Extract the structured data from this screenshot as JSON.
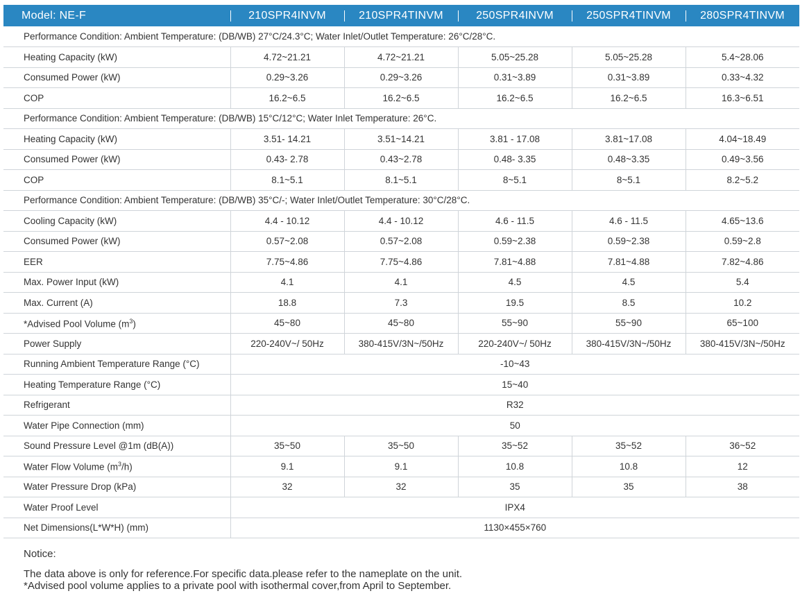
{
  "header": {
    "model_label": "Model: NE-F",
    "models": [
      "210SPR4INVM",
      "210SPR4TINVM",
      "250SPR4INVM",
      "250SPR4TINVM",
      "280SPR4TINVM"
    ]
  },
  "conditions": {
    "c1": "Performance Condition: Ambient Temperature:  (DB/WB) 27°C/24.3°C; Water Inlet/Outlet Temperature: 26°C/28°C.",
    "c2": "Performance Condition: Ambient Temperature:  (DB/WB) 15°C/12°C; Water Inlet Temperature: 26°C.",
    "c3": "Performance Condition: Ambient Temperature:  (DB/WB) 35°C/-; Water Inlet/Outlet Temperature: 30°C/28°C."
  },
  "rows": {
    "r1": {
      "label": "Heating Capacity (kW)",
      "v": [
        "4.72~21.21",
        "4.72~21.21",
        "5.05~25.28",
        "5.05~25.28",
        "5.4~28.06"
      ]
    },
    "r2": {
      "label": "Consumed Power (kW)",
      "v": [
        "0.29~3.26",
        "0.29~3.26",
        "0.31~3.89",
        "0.31~3.89",
        "0.33~4.32"
      ]
    },
    "r3": {
      "label": "COP",
      "v": [
        "16.2~6.5",
        "16.2~6.5",
        "16.2~6.5",
        "16.2~6.5",
        "16.3~6.51"
      ]
    },
    "r4": {
      "label": "Heating Capacity (kW)",
      "v": [
        "3.51- 14.21",
        "3.51~14.21",
        "3.81 - 17.08",
        "3.81~17.08",
        "4.04~18.49"
      ]
    },
    "r5": {
      "label": "Consumed Power (kW)",
      "v": [
        "0.43- 2.78",
        "0.43~2.78",
        "0.48- 3.35",
        "0.48~3.35",
        "0.49~3.56"
      ]
    },
    "r6": {
      "label": "COP",
      "v": [
        "8.1~5.1",
        "8.1~5.1",
        "8~5.1",
        "8~5.1",
        "8.2~5.2"
      ]
    },
    "r7": {
      "label": "Cooling Capacity (kW)",
      "v": [
        "4.4 - 10.12",
        "4.4 - 10.12",
        "4.6 - 11.5",
        "4.6 - 11.5",
        "4.65~13.6"
      ]
    },
    "r8": {
      "label": "Consumed Power (kW)",
      "v": [
        "0.57~2.08",
        "0.57~2.08",
        "0.59~2.38",
        "0.59~2.38",
        "0.59~2.8"
      ]
    },
    "r9": {
      "label": "EER",
      "v": [
        "7.75~4.86",
        "7.75~4.86",
        "7.81~4.88",
        "7.81~4.88",
        "7.82~4.86"
      ]
    },
    "r10": {
      "label": "Max. Power Input (kW)",
      "v": [
        "4.1",
        "4.1",
        "4.5",
        "4.5",
        "5.4"
      ]
    },
    "r11": {
      "label": "Max. Current (A)",
      "v": [
        "18.8",
        "7.3",
        "19.5",
        "8.5",
        "10.2"
      ]
    },
    "r12": {
      "label_pre": "*Advised Pool Volume (m",
      "label_sup": "3",
      "label_post": ")",
      "v": [
        "45~80",
        "45~80",
        "55~90",
        "55~90",
        "65~100"
      ]
    },
    "r13": {
      "label": "Power Supply",
      "v": [
        "220-240V~/ 50Hz",
        "380-415V/3N~/50Hz",
        "220-240V~/ 50Hz",
        "380-415V/3N~/50Hz",
        "380-415V/3N~/50Hz"
      ]
    },
    "r14": {
      "label": "Running Ambient Temperature Range (°C)",
      "span": "-10~43"
    },
    "r15": {
      "label": "Heating Temperature Range (°C)",
      "span": "15~40"
    },
    "r16": {
      "label": "Refrigerant",
      "span": "R32"
    },
    "r17": {
      "label": "Water Pipe Connection (mm)",
      "span": "50"
    },
    "r18": {
      "label": "Sound Pressure Level @1m (dB(A))",
      "v": [
        "35~50",
        "35~50",
        "35~52",
        "35~52",
        "36~52"
      ]
    },
    "r19": {
      "label_pre": "Water Flow Volume (m",
      "label_sup": "3",
      "label_post": "/h)",
      "v": [
        "9.1",
        "9.1",
        "10.8",
        "10.8",
        "12"
      ]
    },
    "r20": {
      "label": "Water Pressure Drop (kPa)",
      "v": [
        "32",
        "32",
        "35",
        "35",
        "38"
      ]
    },
    "r21": {
      "label": "Water Proof Level",
      "span": "IPX4"
    },
    "r22": {
      "label": "Net Dimensions(L*W*H) (mm)",
      "span": "1130×455×760"
    }
  },
  "notice": {
    "title": "Notice:",
    "line1": "The data above is only for reference.For specific data.please refer to the nameplate on the unit.",
    "line2": "*Advised pool volume applies to a private pool with isothermal cover,from April to September."
  }
}
